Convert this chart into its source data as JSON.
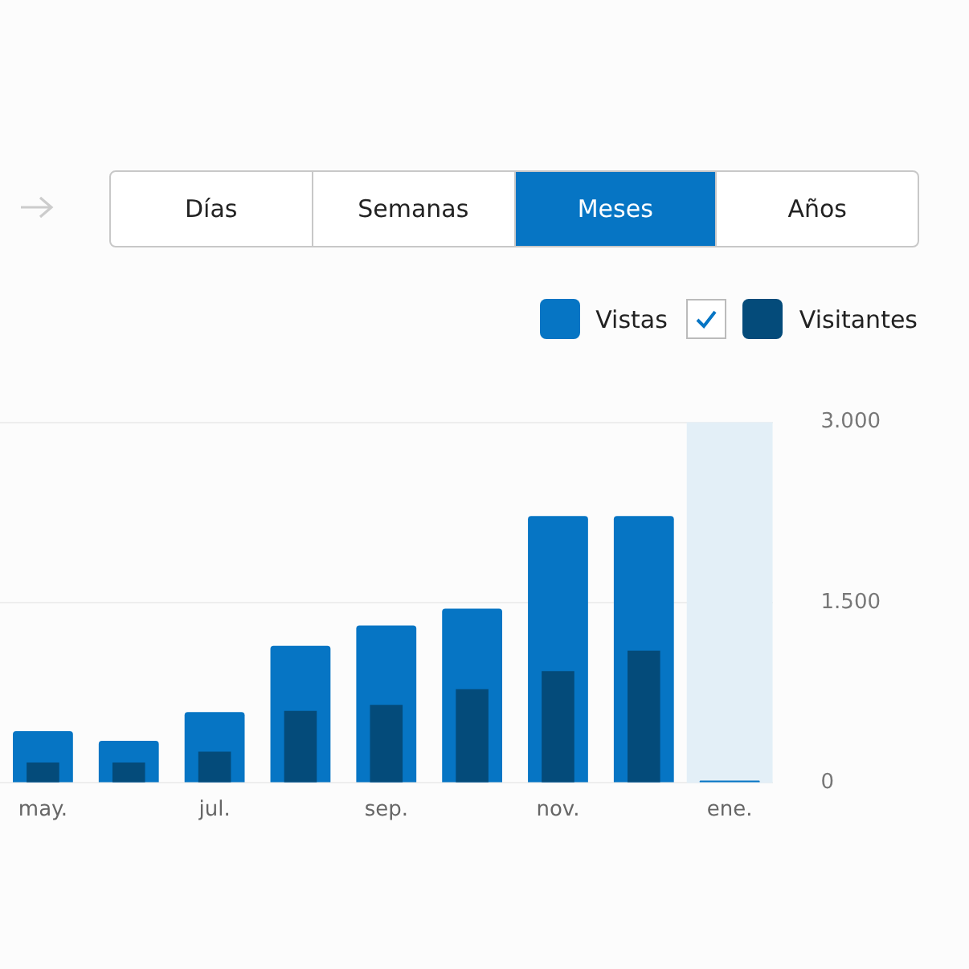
{
  "chart_data": {
    "type": "bar",
    "categories": [
      "may.",
      null,
      "jul.",
      null,
      "sep.",
      null,
      "nov.",
      null,
      "ene."
    ],
    "series": [
      {
        "name": "Vistas",
        "color": "#0675c4",
        "values": [
          430,
          350,
          590,
          1140,
          1310,
          1450,
          2220,
          2220,
          20
        ]
      },
      {
        "name": "Visitantes",
        "color": "#044b7a",
        "values": [
          170,
          170,
          260,
          600,
          650,
          780,
          930,
          1100,
          null
        ]
      }
    ],
    "ylim": [
      0,
      3000
    ],
    "yticks": [
      0,
      {
        "value": 1500,
        "label": "1.500"
      },
      {
        "value": 3000,
        "label": "3.000"
      }
    ],
    "grid": "y",
    "legend": "top right",
    "bands": [
      {
        "axis": "x",
        "from": "ene.",
        "to": "ene.",
        "color": "#e3eff7"
      }
    ],
    "annotations": [
      "Días",
      "Semanas",
      "Meses",
      "Años"
    ]
  }
}
